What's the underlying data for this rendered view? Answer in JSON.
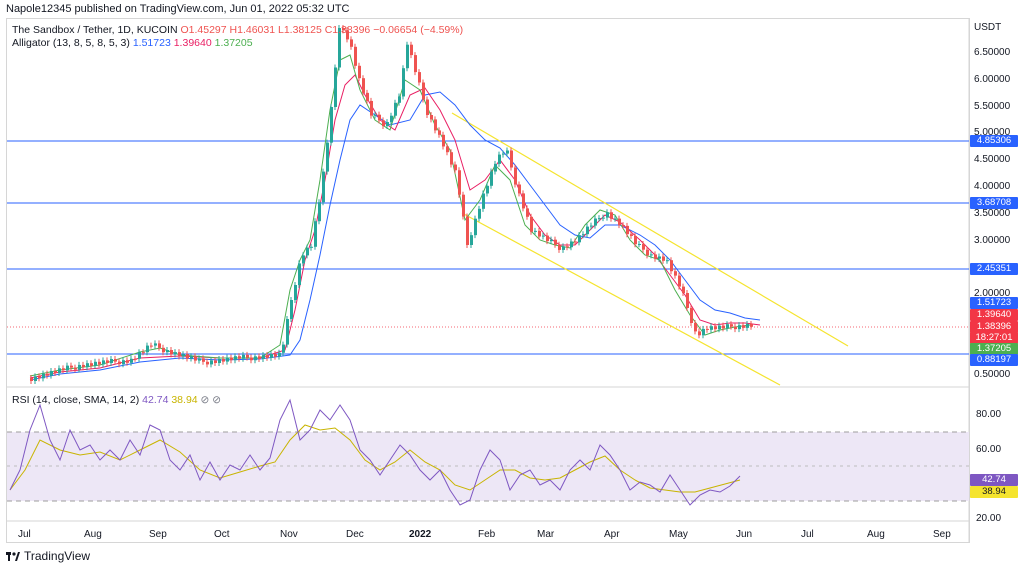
{
  "header": {
    "publish_line": "Napole12345 published on TradingView.com, Jun 01, 2022 05:32 UTC"
  },
  "legend": {
    "symbol": "The Sandbox / Tether, 1D, KUCOIN",
    "o": "O1.45297",
    "h": "H1.46031",
    "l": "L1.38125",
    "c": "C1.38396",
    "change": "−0.06654 (−4.59%)",
    "alligator_name": "Alligator (13, 8, 5, 8, 5, 3)",
    "alligator_jaw": "1.51723",
    "alligator_teeth": "1.39640",
    "alligator_lips": "1.37205"
  },
  "rsi_legend": {
    "name": "RSI (14, close, SMA, 14, 2)",
    "rsi_value": "42.74",
    "sma_value": "38.94"
  },
  "price_axis": {
    "currency": "USDT",
    "labels": [
      "6.50000",
      "6.00000",
      "5.50000",
      "5.00000",
      "4.50000",
      "4.00000",
      "3.50000",
      "3.00000",
      "2.00000",
      "0.50000"
    ]
  },
  "price_tags": [
    {
      "text": "4.85306",
      "color": "#2962ff"
    },
    {
      "text": "3.68708",
      "color": "#2962ff"
    },
    {
      "text": "2.45351",
      "color": "#2962ff"
    },
    {
      "text": "1.51723",
      "color": "#2962ff"
    },
    {
      "text": "1.39640",
      "color": "#f23645"
    },
    {
      "text": "1.38396",
      "color": "#f23645"
    },
    {
      "text": "18:27:01",
      "color": "#f23645"
    },
    {
      "text": "1.37205",
      "color": "#4caf50"
    },
    {
      "text": "0.88197",
      "color": "#2962ff"
    }
  ],
  "rsi_axis": {
    "labels": [
      "80.00",
      "60.00",
      "20.00"
    ]
  },
  "rsi_tags": [
    {
      "text": "42.74",
      "color": "#7e57c2"
    },
    {
      "text": "38.94",
      "color": "#f5e42e",
      "text_color": "#131722"
    }
  ],
  "time_axis": {
    "labels": [
      "Jul",
      "Aug",
      "Sep",
      "Oct",
      "Nov",
      "Dec",
      "2022",
      "Feb",
      "Mar",
      "Apr",
      "May",
      "Jun",
      "Jul",
      "Aug",
      "Sep"
    ]
  },
  "horizontal_levels": [
    "4.85306",
    "3.68708",
    "2.45351",
    "0.88197"
  ],
  "brand": {
    "name": "TradingView"
  },
  "colors": {
    "up": "#26a69a",
    "down": "#ef5350",
    "jaw": "#2962ff",
    "teeth": "#e91e63",
    "lips": "#4caf50",
    "channel": "#f5e42e",
    "level": "#2962ff",
    "rsi": "#7e57c2",
    "rsi_band": "#ede7f6"
  }
}
